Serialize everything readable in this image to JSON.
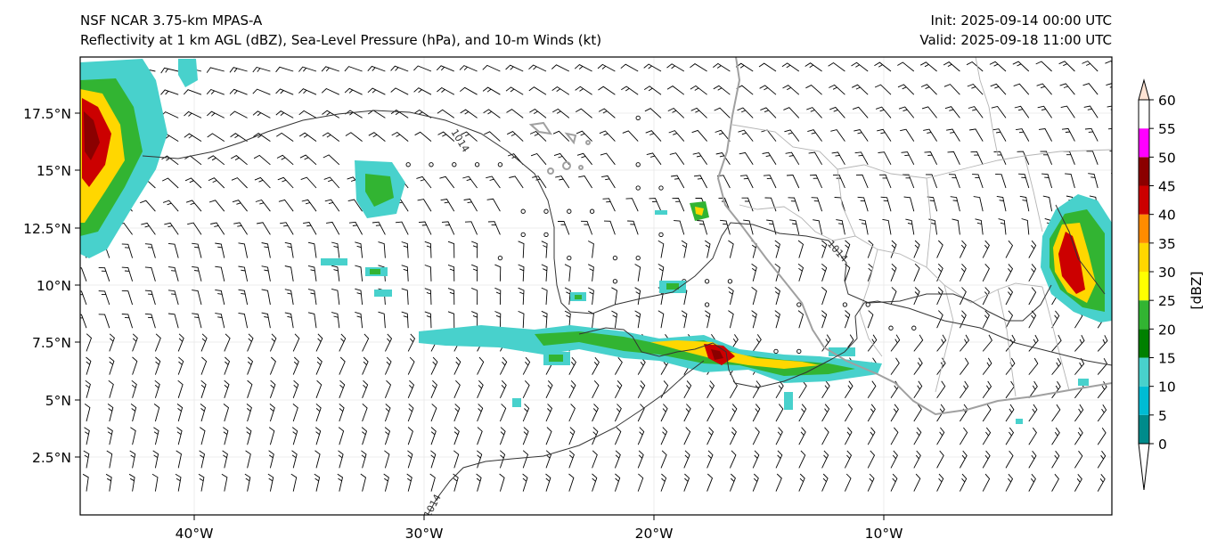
{
  "header": {
    "model_title": "NSF NCAR 3.75-km MPAS-A",
    "field_title": "Reflectivity at 1 km AGL (dBZ), Sea-Level Pressure (hPa), and 10-m Winds (kt)",
    "init": "Init: 2025-09-14 00:00 UTC",
    "valid": "Valid: 2025-09-18 11:00 UTC"
  },
  "map": {
    "lon_labels": [
      "40°W",
      "30°W",
      "20°W",
      "10°W"
    ],
    "lat_labels": [
      "17.5°N",
      "15°N",
      "12.5°N",
      "10°N",
      "7.5°N",
      "5°N",
      "2.5°N"
    ],
    "isobar_labels": [
      "1014",
      "1014",
      "1014"
    ],
    "colors": {
      "coastline": "#a0a0a0",
      "borders": "#b4b4b4",
      "isobars": "#333333",
      "barbs": "#000000"
    }
  },
  "colorbar": {
    "label": "[dBZ]",
    "ticks": [
      "0",
      "5",
      "10",
      "15",
      "20",
      "25",
      "30",
      "35",
      "40",
      "45",
      "50",
      "55",
      "60"
    ],
    "colors": [
      "#ffffff",
      "#008b8b",
      "#00bcd4",
      "#48d1cc",
      "#008000",
      "#32b432",
      "#ffff00",
      "#ffd700",
      "#ff8c00",
      "#cc0000",
      "#8b0000",
      "#ff00ff",
      "#ffe4d4"
    ]
  }
}
